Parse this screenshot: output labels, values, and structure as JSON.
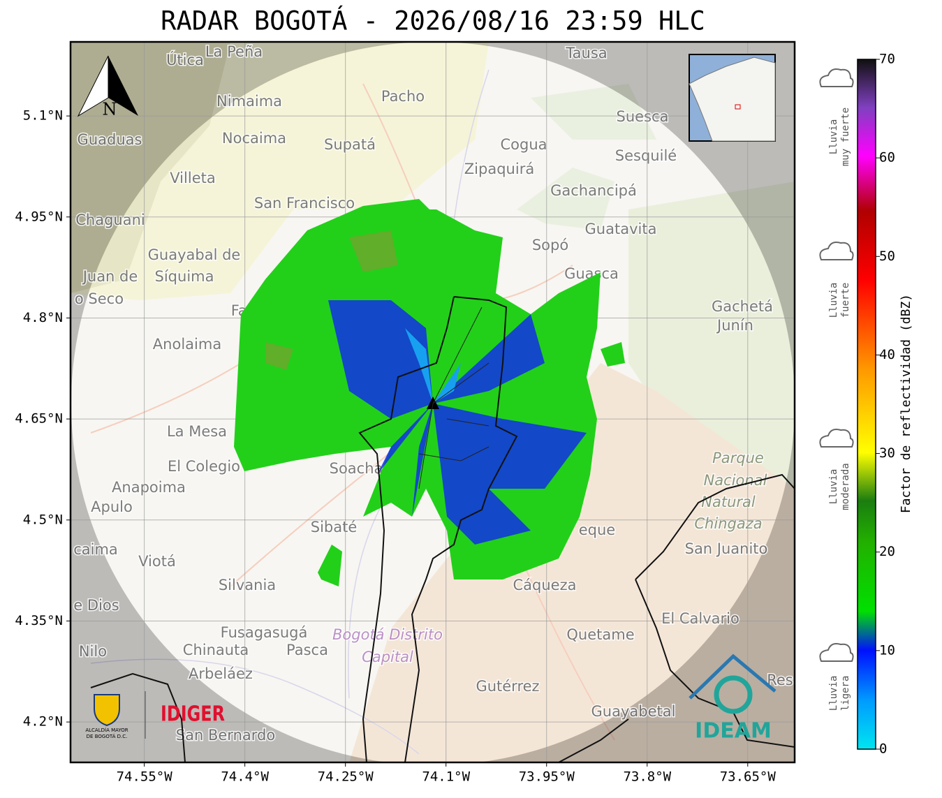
{
  "map": {
    "title": "RADAR BOGOTÁ - 2026/08/16 23:59 HLC",
    "xlim": [
      -74.66,
      -73.58
    ],
    "ylim": [
      4.14,
      5.21
    ],
    "xticks": [
      {
        "value": -74.55,
        "label": "74.55°W"
      },
      {
        "value": -74.4,
        "label": "74.4°W"
      },
      {
        "value": -74.25,
        "label": "74.25°W"
      },
      {
        "value": -74.1,
        "label": "74.1°W"
      },
      {
        "value": -73.95,
        "label": "73.95°W"
      },
      {
        "value": -73.8,
        "label": "73.8°W"
      },
      {
        "value": -73.65,
        "label": "73.65°W"
      }
    ],
    "yticks": [
      {
        "value": 5.1,
        "label": "5.1°N"
      },
      {
        "value": 4.95,
        "label": "4.95°N"
      },
      {
        "value": 4.8,
        "label": "4.8°N"
      },
      {
        "value": 4.65,
        "label": "4.65°N"
      },
      {
        "value": 4.5,
        "label": "4.5°N"
      },
      {
        "value": 4.35,
        "label": "4.35°N"
      },
      {
        "value": 4.2,
        "label": "4.2°N"
      }
    ],
    "grid": true,
    "north": "N",
    "places": [
      "Útica",
      "La Peña",
      "Tausa",
      "Pacho",
      "Nimaima",
      "Suesca",
      "Guaduas",
      "Nocaima",
      "Supatá",
      "Cogua",
      "Sesquilé",
      "Zipaquirá",
      "Villeta",
      "Gachancipá",
      "San Francisco",
      "Chaguani",
      "Guatavita",
      "Sopó",
      "Guayabal de",
      "Síquima",
      "Juan de",
      "Guasca",
      "o Seco",
      "Gachetá",
      "Junín",
      "Fac",
      "Anolaima",
      "La Mesa",
      "El Colegio",
      "Soacha",
      "Parque",
      "Nacional",
      "Natural",
      "Chingaza",
      "Anapoima",
      "Apulo",
      "Sibaté",
      "eque",
      "San Juanito",
      "caima",
      "Viotá",
      "Silvania",
      "Cáqueza",
      "e Dios",
      "El Calvario",
      "Fusagasugá",
      "Bogotá Distrito",
      "Capital",
      "Quetame",
      "Nilo",
      "Chinauta",
      "Pasca",
      "Arbeláez",
      "Gutérrez",
      "Guayabetal",
      "San Bernardo",
      "Res"
    ],
    "logos": {
      "alcaldia": "ALCALDÍA MAYOR",
      "alcaldia2": "DE BOGOTÁ D.C.",
      "idiger": "IDIGER",
      "ideam": "IDEAM"
    }
  },
  "colorbar": {
    "label": "Factor de reflectividad (dBZ)",
    "lim": [
      0,
      70
    ],
    "ticks": [
      0,
      10,
      20,
      30,
      40,
      50,
      60,
      70
    ],
    "categories": [
      {
        "line1": "Lluvia",
        "line2": "muy fuerte"
      },
      {
        "line1": "Lluvia",
        "line2": "fuerte"
      },
      {
        "line1": "Lluvia",
        "line2": "moderada"
      },
      {
        "line1": "Lluvia",
        "line2": "ligera"
      }
    ]
  }
}
